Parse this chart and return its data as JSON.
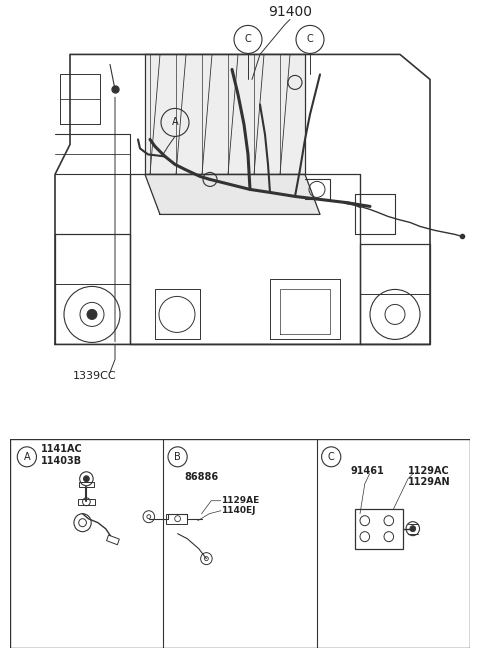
{
  "bg_color": "#ffffff",
  "line_color": "#333333",
  "text_color": "#222222",
  "part_label_main": "91400",
  "part_label_1339": "1339CC",
  "section_A_labels": [
    "1141AC",
    "11403B"
  ],
  "section_B_labels": [
    "86886",
    "1129AE",
    "1140EJ"
  ],
  "section_C_labels": [
    "91461",
    "1129AC",
    "1129AN"
  ],
  "fig_width": 4.8,
  "fig_height": 6.55,
  "dpi": 100
}
